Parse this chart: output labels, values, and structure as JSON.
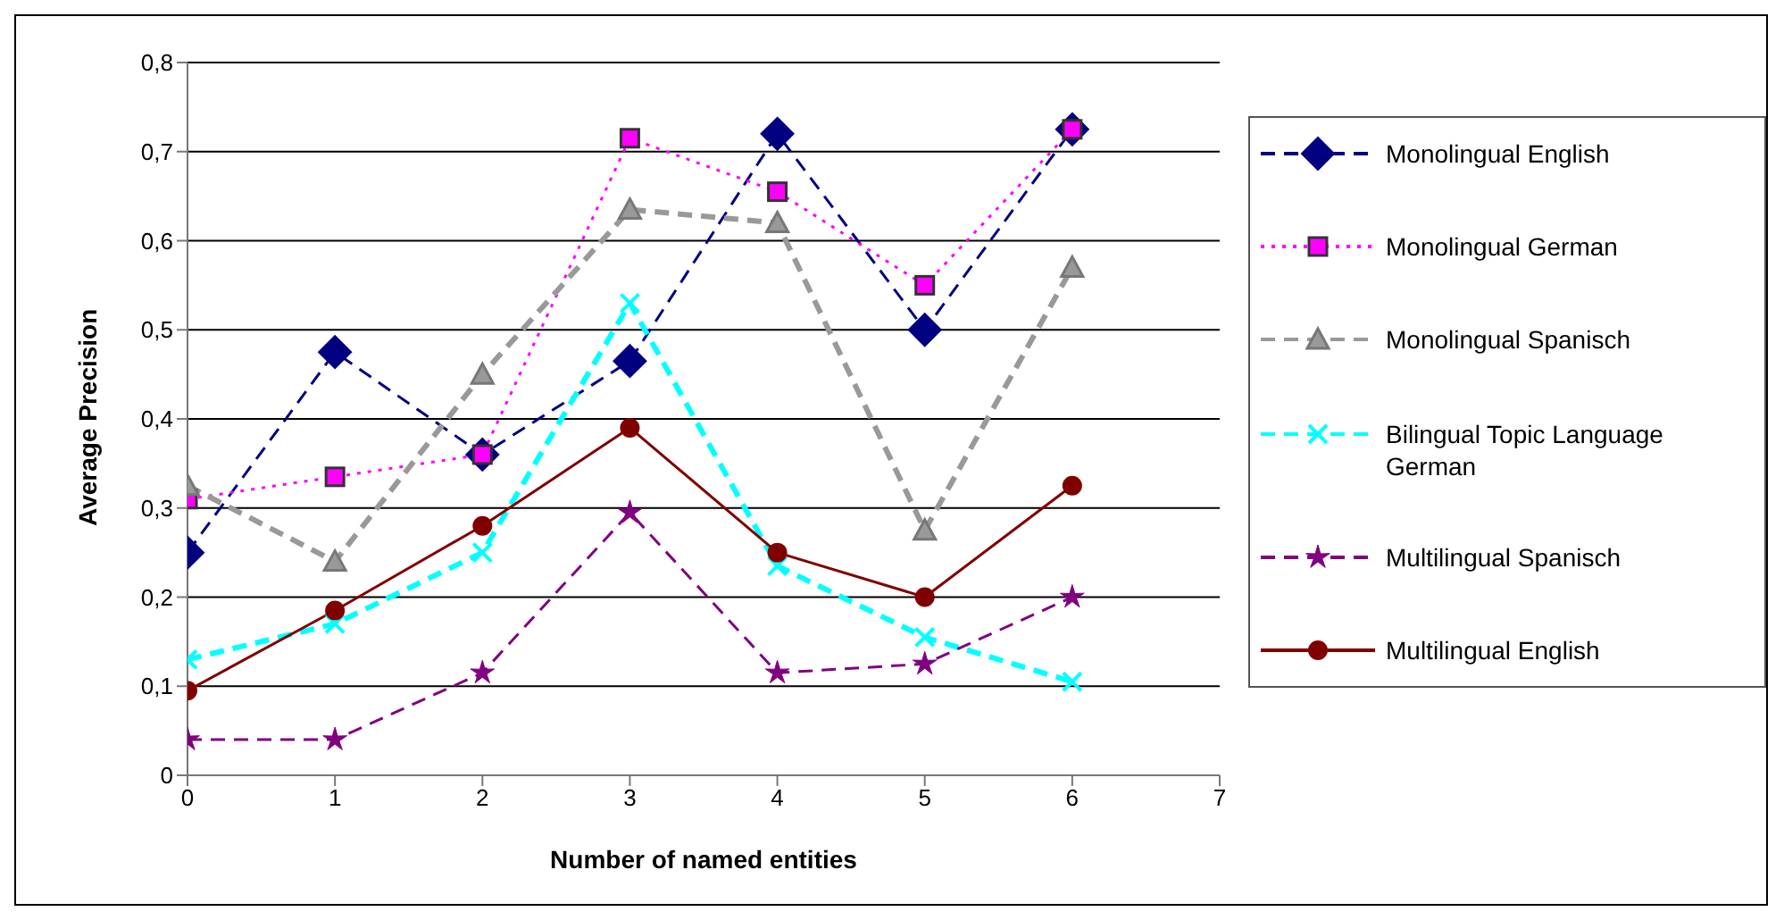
{
  "chart_data": {
    "type": "line",
    "xlabel": "Number of named entities",
    "ylabel": "Average Precision",
    "x": [
      0,
      1,
      2,
      3,
      4,
      5,
      6
    ],
    "xlim": [
      0,
      7
    ],
    "xticks": [
      0,
      1,
      2,
      3,
      4,
      5,
      6,
      7
    ],
    "ylim": [
      0,
      0.8
    ],
    "yticks": [
      0,
      {
        "value": 0.1,
        "label": "0,1"
      },
      {
        "value": 0.2,
        "label": "0,2"
      },
      {
        "value": 0.3,
        "label": "0,3"
      },
      {
        "value": 0.4,
        "label": "0,4"
      },
      {
        "value": 0.5,
        "label": "0,5"
      },
      {
        "value": 0.6,
        "label": "0,6"
      },
      {
        "value": 0.7,
        "label": "0,7"
      },
      {
        "value": 0.8,
        "label": "0,8"
      }
    ],
    "grid": "y",
    "legend": "right",
    "series": [
      {
        "name": "Monolingual English",
        "color": "#000080",
        "marker": "diamond",
        "line_style": "dashed",
        "values": [
          0.25,
          0.475,
          0.36,
          0.465,
          0.72,
          0.5,
          0.725
        ]
      },
      {
        "name": "Monolingual German",
        "color": "#ff00ff",
        "marker": "square",
        "line_style": "dotted",
        "values": [
          0.31,
          0.335,
          0.36,
          0.715,
          0.655,
          0.55,
          0.725
        ]
      },
      {
        "name": "Monolingual Spanisch",
        "color": "#999999",
        "marker": "triangle",
        "line_style": "dashed",
        "values": [
          0.325,
          0.24,
          0.45,
          0.635,
          0.62,
          0.275,
          0.57
        ]
      },
      {
        "name": "Bilingual Topic Language German",
        "color": "#00ffff",
        "marker": "cross",
        "line_style": "dashed",
        "values": [
          0.13,
          0.17,
          0.25,
          0.53,
          0.235,
          0.155,
          0.105
        ]
      },
      {
        "name": "Multilingual Spanisch",
        "color": "#800080",
        "marker": "star",
        "line_style": "dashed",
        "values": [
          0.04,
          0.04,
          0.115,
          0.295,
          0.115,
          0.125,
          0.2
        ]
      },
      {
        "name": "Multilingual English",
        "color": "#800000",
        "marker": "circle",
        "line_style": "solid",
        "values": [
          0.095,
          0.185,
          0.28,
          0.39,
          0.25,
          0.2,
          0.325
        ]
      }
    ]
  }
}
